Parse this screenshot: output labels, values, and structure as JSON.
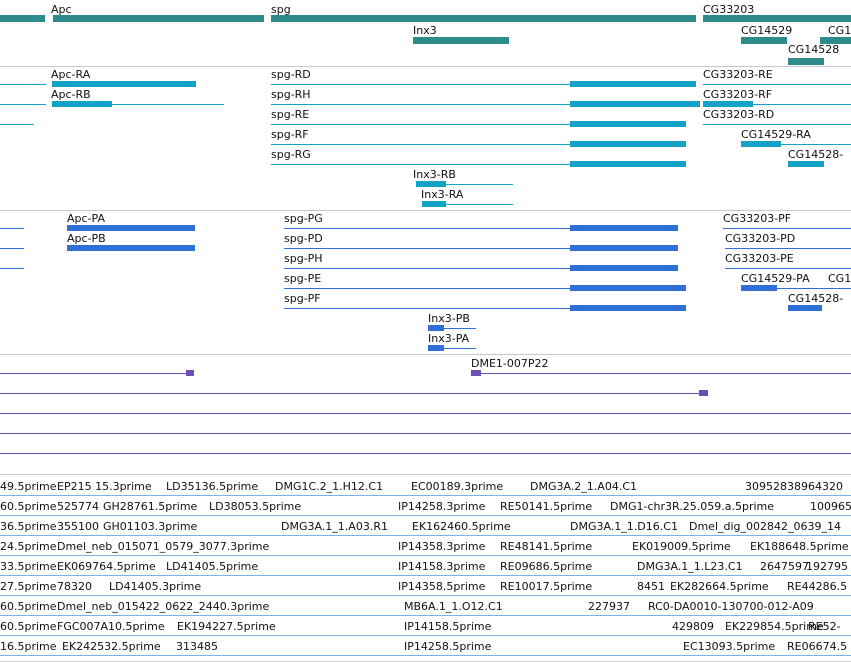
{
  "colors": {
    "gene": "#2e8b8b",
    "transcript": "#14a3c7",
    "protein": "#2f6fd6",
    "bac": "#6b4fb5",
    "est": "#7fb2e0",
    "divider": "#c9c9c9"
  },
  "genes": [
    {
      "name": "Apc"
    },
    {
      "name": "spg"
    },
    {
      "name": "CG33203"
    },
    {
      "name": "Inx3"
    },
    {
      "name": "CG14529"
    },
    {
      "name": "CG1"
    },
    {
      "name": "CG14528"
    }
  ],
  "transcripts": [
    {
      "name": "Apc-RA"
    },
    {
      "name": "Apc-RB"
    },
    {
      "name": "spg-RD"
    },
    {
      "name": "spg-RH"
    },
    {
      "name": "spg-RE"
    },
    {
      "name": "spg-RF"
    },
    {
      "name": "spg-RG"
    },
    {
      "name": "CG33203-RE"
    },
    {
      "name": "CG33203-RF"
    },
    {
      "name": "CG33203-RD"
    },
    {
      "name": "CG14529-RA"
    },
    {
      "name": "CG14528-"
    },
    {
      "name": "Inx3-RB"
    },
    {
      "name": "Inx3-RA"
    }
  ],
  "proteins": [
    {
      "name": "Apc-PA"
    },
    {
      "name": "Apc-PB"
    },
    {
      "name": "spg-PG"
    },
    {
      "name": "spg-PD"
    },
    {
      "name": "spg-PH"
    },
    {
      "name": "spg-PE"
    },
    {
      "name": "spg-PF"
    },
    {
      "name": "CG33203-PF"
    },
    {
      "name": "CG33203-PD"
    },
    {
      "name": "CG33203-PE"
    },
    {
      "name": "CG14529-PA"
    },
    {
      "name": "CG1"
    },
    {
      "name": "CG14528-"
    },
    {
      "name": "Inx3-PB"
    },
    {
      "name": "Inx3-PA"
    }
  ],
  "bac": [
    {
      "name": "DME1-007P22"
    }
  ],
  "ests": [
    [
      "49.5prime",
      "EP215 15.3prime",
      "LD35136.5prime",
      "DMG1C.2_1.H12.C1",
      "EC00189.3prime",
      "DMG3A.2_1.A04.C1",
      "30952838964320"
    ],
    [
      "60.5prime",
      "525774",
      "GH28761.5prime",
      "LD38053.5prime",
      "IP14258.3prime",
      "RE50141.5prime",
      "DMG1-chr3R.25.059.a.5prime",
      "100965"
    ],
    [
      "36.5prime",
      "355100",
      "GH01103.3prime",
      "DMG3A.1_1.A03.R1",
      "EK162460.5prime",
      "DMG3A.1_1.D16.C1",
      "Dmel_dig_002842_0639_14"
    ],
    [
      "24.5prime",
      "Dmel_neb_015071_0579_3077.3prime",
      "IP14358.3prime",
      "RE48141.5prime",
      "EK019009.5prime",
      "EK188648.5prime"
    ],
    [
      "33.5prime",
      "EK069764.5prime",
      "LD41405.5prime",
      "IP14158.3prime",
      "RE09686.5prime",
      "DMG3A.1_1.L23.C1",
      "2647597",
      "192795"
    ],
    [
      "27.5prime",
      "78320",
      "LD41405.3prime",
      "IP14358.5prime",
      "RE10017.5prime",
      "8451",
      "EK282664.5prime",
      "RE44286.5"
    ],
    [
      "60.5prime",
      "Dmel_neb_015422_0622_2440.3prime",
      "MB6A.1_1.O12.C1",
      "227937",
      "RC0-DA0010-130700-012-A09"
    ],
    [
      "60.5prime",
      "FGC007A10.5prime",
      "EK194227.5prime",
      "IP14158.5prime",
      "429809",
      "EK229854.5prime",
      "RE52-"
    ],
    [
      "16.5prime",
      "EK242532.5prime",
      "313485",
      "IP14258.5prime",
      "EC13093.5prime",
      "RE06674.5"
    ]
  ]
}
